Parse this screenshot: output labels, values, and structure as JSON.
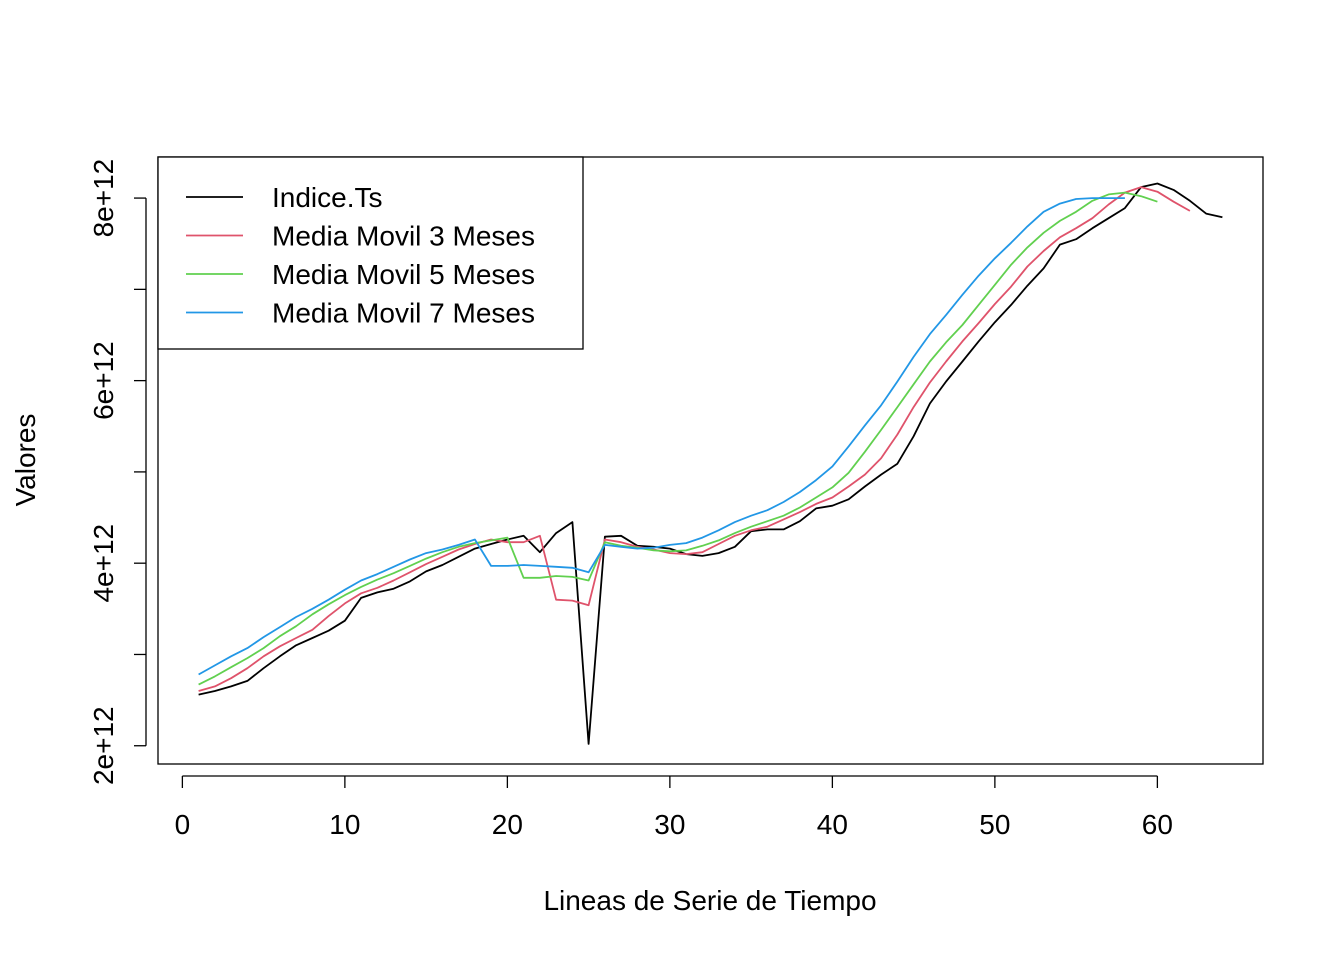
{
  "chart_data": {
    "type": "line",
    "title": "",
    "xlabel": "Lineas de Serie de Tiempo",
    "ylabel": "Valores",
    "xlim": [
      -1.5,
      66.5
    ],
    "ylim": [
      1800000000000.0,
      8450000000000.0
    ],
    "x_ticks": [
      0,
      10,
      20,
      30,
      40,
      50,
      60
    ],
    "x_tick_labels": [
      "0",
      "10",
      "20",
      "30",
      "40",
      "50",
      "60"
    ],
    "y_ticks": [
      2000000000000.0,
      3000000000000.0,
      4000000000000.0,
      5000000000000.0,
      6000000000000.0,
      7000000000000.0,
      8000000000000.0
    ],
    "y_tick_labels": [
      "2e+12",
      "",
      "4e+12",
      "",
      "6e+12",
      "",
      "8e+12"
    ],
    "grid": false,
    "legend_position": "top-left",
    "series": [
      {
        "name": "Indice.Ts",
        "color": "#000000",
        "x": [
          1,
          2,
          3,
          4,
          5,
          6,
          7,
          8,
          9,
          10,
          11,
          12,
          13,
          14,
          15,
          16,
          17,
          18,
          19,
          20,
          21,
          22,
          23,
          24,
          25,
          26,
          27,
          28,
          29,
          30,
          31,
          32,
          33,
          34,
          35,
          36,
          37,
          38,
          39,
          40,
          41,
          42,
          43,
          44,
          45,
          46,
          47,
          48,
          49,
          50,
          51,
          52,
          53,
          54,
          55,
          56,
          57,
          58,
          59,
          60,
          61,
          62,
          63,
          64
        ],
        "y": [
          2560000000000.0,
          2600000000000.0,
          2650000000000.0,
          2710000000000.0,
          2850000000000.0,
          2980000000000.0,
          3100000000000.0,
          3180000000000.0,
          3260000000000.0,
          3370000000000.0,
          3620000000000.0,
          3680000000000.0,
          3720000000000.0,
          3800000000000.0,
          3910000000000.0,
          3980000000000.0,
          4070000000000.0,
          4160000000000.0,
          4210000000000.0,
          4260000000000.0,
          4300000000000.0,
          4120000000000.0,
          4330000000000.0,
          4450000000000.0,
          2020000000000.0,
          4290000000000.0,
          4300000000000.0,
          4190000000000.0,
          4180000000000.0,
          4160000000000.0,
          4100000000000.0,
          4080000000000.0,
          4110000000000.0,
          4180000000000.0,
          4350000000000.0,
          4370000000000.0,
          4370000000000.0,
          4460000000000.0,
          4600000000000.0,
          4630000000000.0,
          4700000000000.0,
          4840000000000.0,
          4970000000000.0,
          5090000000000.0,
          5390000000000.0,
          5750000000000.0,
          5990000000000.0,
          6210000000000.0,
          6430000000000.0,
          6640000000000.0,
          6830000000000.0,
          7040000000000.0,
          7230000000000.0,
          7490000000000.0,
          7550000000000.0,
          7670000000000.0,
          7780000000000.0,
          7890000000000.0,
          8120000000000.0,
          8160000000000.0,
          8090000000000.0,
          7970000000000.0,
          7830000000000.0,
          7790000000000.0
        ]
      },
      {
        "name": "Media Movil 3 Meses",
        "color": "#DF536B",
        "x": [
          1,
          2,
          3,
          4,
          5,
          6,
          7,
          8,
          9,
          10,
          11,
          12,
          13,
          14,
          15,
          16,
          17,
          18,
          19,
          20,
          21,
          22,
          23,
          24,
          25,
          26,
          27,
          28,
          29,
          30,
          31,
          32,
          33,
          34,
          35,
          36,
          37,
          38,
          39,
          40,
          41,
          42,
          43,
          44,
          45,
          46,
          47,
          48,
          49,
          50,
          51,
          52,
          53,
          54,
          55,
          56,
          57,
          58,
          59,
          60,
          61,
          62
        ],
        "y": [
          2600000000000.0,
          2650000000000.0,
          2740000000000.0,
          2850000000000.0,
          2980000000000.0,
          3090000000000.0,
          3180000000000.0,
          3270000000000.0,
          3420000000000.0,
          3560000000000.0,
          3670000000000.0,
          3730000000000.0,
          3810000000000.0,
          3900000000000.0,
          3990000000000.0,
          4070000000000.0,
          4150000000000.0,
          4210000000000.0,
          4260000000000.0,
          4230000000000.0,
          4230000000000.0,
          4300000000000.0,
          3600000000000.0,
          3590000000000.0,
          3540000000000.0,
          4260000000000.0,
          4230000000000.0,
          4180000000000.0,
          4150000000000.0,
          4110000000000.0,
          4100000000000.0,
          4120000000000.0,
          4210000000000.0,
          4300000000000.0,
          4360000000000.0,
          4400000000000.0,
          4480000000000.0,
          4560000000000.0,
          4650000000000.0,
          4720000000000.0,
          4840000000000.0,
          4970000000000.0,
          5150000000000.0,
          5410000000000.0,
          5710000000000.0,
          5980000000000.0,
          6210000000000.0,
          6430000000000.0,
          6630000000000.0,
          6840000000000.0,
          7030000000000.0,
          7250000000000.0,
          7420000000000.0,
          7570000000000.0,
          7670000000000.0,
          7780000000000.0,
          7930000000000.0,
          8060000000000.0,
          8120000000000.0,
          8070000000000.0,
          7960000000000.0,
          7860000000000.0
        ]
      },
      {
        "name": "Media Movil 5 Meses",
        "color": "#61D04F",
        "x": [
          1,
          2,
          3,
          4,
          5,
          6,
          7,
          8,
          9,
          10,
          11,
          12,
          13,
          14,
          15,
          16,
          17,
          18,
          19,
          20,
          21,
          22,
          23,
          24,
          25,
          26,
          27,
          28,
          29,
          30,
          31,
          32,
          33,
          34,
          35,
          36,
          37,
          38,
          39,
          40,
          41,
          42,
          43,
          44,
          45,
          46,
          47,
          48,
          49,
          50,
          51,
          52,
          53,
          54,
          55,
          56,
          57,
          58,
          59,
          60
        ],
        "y": [
          2670000000000.0,
          2760000000000.0,
          2860000000000.0,
          2960000000000.0,
          3070000000000.0,
          3200000000000.0,
          3310000000000.0,
          3440000000000.0,
          3550000000000.0,
          3650000000000.0,
          3740000000000.0,
          3820000000000.0,
          3890000000000.0,
          3970000000000.0,
          4050000000000.0,
          4120000000000.0,
          4180000000000.0,
          4220000000000.0,
          4250000000000.0,
          4280000000000.0,
          3840000000000.0,
          3840000000000.0,
          3860000000000.0,
          3850000000000.0,
          3810000000000.0,
          4230000000000.0,
          4190000000000.0,
          4170000000000.0,
          4140000000000.0,
          4130000000000.0,
          4140000000000.0,
          4190000000000.0,
          4250000000000.0,
          4330000000000.0,
          4400000000000.0,
          4460000000000.0,
          4520000000000.0,
          4610000000000.0,
          4720000000000.0,
          4830000000000.0,
          4990000000000.0,
          5220000000000.0,
          5460000000000.0,
          5710000000000.0,
          5960000000000.0,
          6210000000000.0,
          6420000000000.0,
          6610000000000.0,
          6830000000000.0,
          7050000000000.0,
          7270000000000.0,
          7460000000000.0,
          7620000000000.0,
          7750000000000.0,
          7850000000000.0,
          7970000000000.0,
          8040000000000.0,
          8060000000000.0,
          8020000000000.0,
          7960000000000.0
        ]
      },
      {
        "name": "Media Movil 7 Meses",
        "color": "#2297E6",
        "x": [
          1,
          2,
          3,
          4,
          5,
          6,
          7,
          8,
          9,
          10,
          11,
          12,
          13,
          14,
          15,
          16,
          17,
          18,
          19,
          20,
          21,
          22,
          23,
          24,
          25,
          26,
          27,
          28,
          29,
          30,
          31,
          32,
          33,
          34,
          35,
          36,
          37,
          38,
          39,
          40,
          41,
          42,
          43,
          44,
          45,
          46,
          47,
          48,
          49,
          50,
          51,
          52,
          53,
          54,
          55,
          56,
          57,
          58
        ],
        "y": [
          2780000000000.0,
          2880000000000.0,
          2980000000000.0,
          3070000000000.0,
          3190000000000.0,
          3300000000000.0,
          3410000000000.0,
          3500000000000.0,
          3600000000000.0,
          3710000000000.0,
          3810000000000.0,
          3880000000000.0,
          3960000000000.0,
          4040000000000.0,
          4110000000000.0,
          4150000000000.0,
          4200000000000.0,
          4260000000000.0,
          3970000000000.0,
          3970000000000.0,
          3980000000000.0,
          3970000000000.0,
          3960000000000.0,
          3950000000000.0,
          3900000000000.0,
          4200000000000.0,
          4180000000000.0,
          4160000000000.0,
          4170000000000.0,
          4200000000000.0,
          4220000000000.0,
          4280000000000.0,
          4360000000000.0,
          4450000000000.0,
          4520000000000.0,
          4580000000000.0,
          4670000000000.0,
          4780000000000.0,
          4910000000000.0,
          5060000000000.0,
          5280000000000.0,
          5510000000000.0,
          5730000000000.0,
          5990000000000.0,
          6260000000000.0,
          6510000000000.0,
          6720000000000.0,
          6940000000000.0,
          7150000000000.0,
          7340000000000.0,
          7510000000000.0,
          7690000000000.0,
          7850000000000.0,
          7940000000000.0,
          7990000000000.0,
          8000000000000.0,
          8000000000000.0,
          8000000000000.0
        ]
      }
    ]
  }
}
